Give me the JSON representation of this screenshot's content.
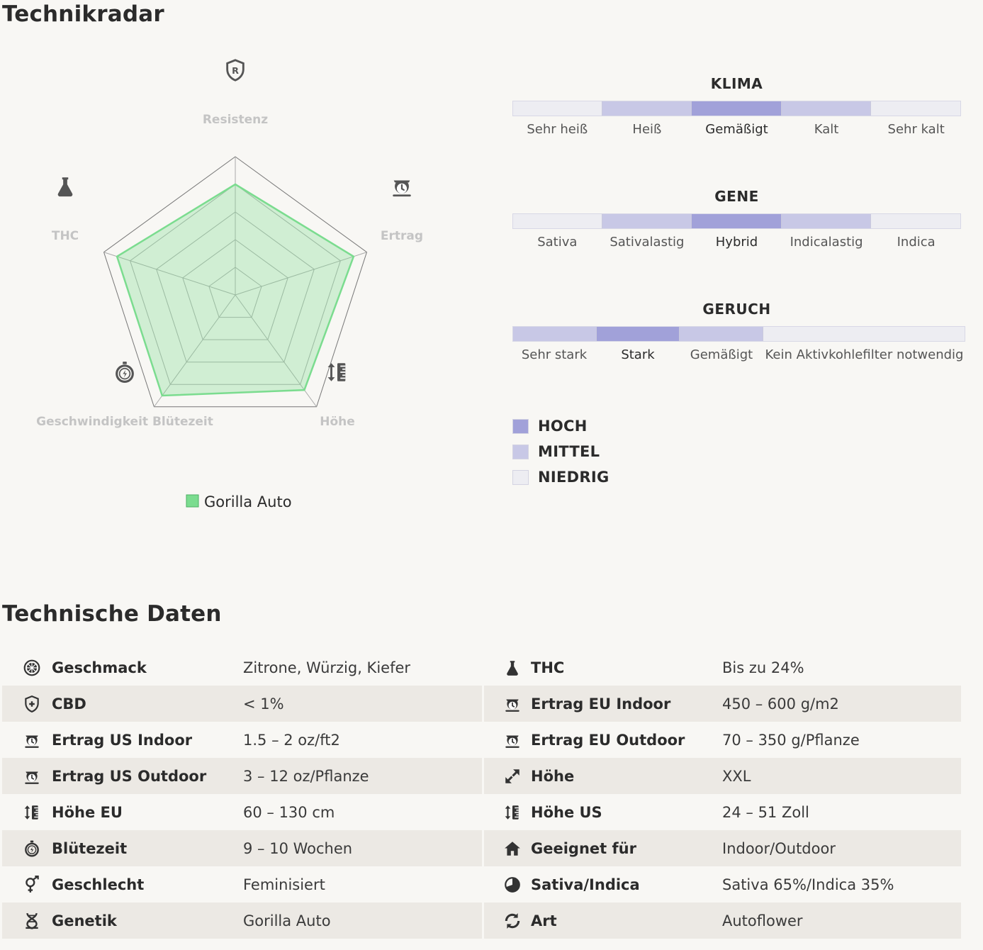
{
  "radar_section": {
    "title": "Technikradar",
    "axes": [
      {
        "label": "Resistenz",
        "icon": "shield-r-icon"
      },
      {
        "label": "Ertrag",
        "icon": "scale-icon"
      },
      {
        "label": "Höhe",
        "icon": "height-icon"
      },
      {
        "label": "Geschwindigkeit Blütezeit",
        "icon": "stopwatch-icon"
      },
      {
        "label": "THC",
        "icon": "flask-icon"
      }
    ],
    "legend": "Gorilla Auto"
  },
  "chart_data": {
    "type": "radar",
    "axes": [
      "Resistenz",
      "Ertrag",
      "Höhe",
      "Geschwindigkeit Blütezeit",
      "THC"
    ],
    "series": [
      {
        "name": "Gorilla Auto",
        "values": [
          0.8,
          0.9,
          0.85,
          0.9,
          0.9
        ],
        "color": "#7bdc8f"
      }
    ],
    "range": [
      0,
      1
    ],
    "grid_levels": 5
  },
  "scales": [
    {
      "title": "KLIMA",
      "segments": [
        {
          "label": "Sehr heiß",
          "level": "low"
        },
        {
          "label": "Heiß",
          "level": "mid"
        },
        {
          "label": "Gemäßigt",
          "level": "high"
        },
        {
          "label": "Kalt",
          "level": "mid"
        },
        {
          "label": "Sehr kalt",
          "level": "low"
        }
      ]
    },
    {
      "title": "GENE",
      "segments": [
        {
          "label": "Sativa",
          "level": "low"
        },
        {
          "label": "Sativalastig",
          "level": "mid"
        },
        {
          "label": "Hybrid",
          "level": "high"
        },
        {
          "label": "Indicalastig",
          "level": "mid"
        },
        {
          "label": "Indica",
          "level": "low"
        }
      ]
    },
    {
      "title": "GERUCH",
      "segments": [
        {
          "label": "Sehr stark",
          "level": "mid"
        },
        {
          "label": "Stark",
          "level": "high"
        },
        {
          "label": "Gemäßigt",
          "level": "mid"
        },
        {
          "label": "Kein Aktivkohlefilter notwendig",
          "level": "low"
        }
      ]
    }
  ],
  "level_legend": [
    {
      "label": "HOCH",
      "color": "#a1a1d9"
    },
    {
      "label": "MITTEL",
      "color": "#c8c8e6"
    },
    {
      "label": "NIEDRIG",
      "color": "#ededf2"
    }
  ],
  "tech": {
    "title": "Technische Daten",
    "rows": [
      [
        {
          "icon": "citrus-icon",
          "label": "Geschmack",
          "value": "Zitrone, Würzig, Kiefer"
        },
        {
          "icon": "flask-icon",
          "label": "THC",
          "value": "Bis zu 24%"
        }
      ],
      [
        {
          "icon": "shield-plus-icon",
          "label": "CBD",
          "value": "< 1%"
        },
        {
          "icon": "scale-icon",
          "label": "Ertrag EU Indoor",
          "value": "450 – 600 g/m2"
        }
      ],
      [
        {
          "icon": "scale-icon",
          "label": "Ertrag US Indoor",
          "value": "1.5 – 2 oz/ft2"
        },
        {
          "icon": "scale-icon",
          "label": "Ertrag EU Outdoor",
          "value": "70 – 350 g/Pflanze"
        }
      ],
      [
        {
          "icon": "scale-icon",
          "label": "Ertrag US Outdoor",
          "value": "3 – 12 oz/Pflanze"
        },
        {
          "icon": "expand-arrow-icon",
          "label": "Höhe",
          "value": "XXL"
        }
      ],
      [
        {
          "icon": "height-icon",
          "label": "Höhe EU",
          "value": "60 – 130 cm"
        },
        {
          "icon": "height-icon",
          "label": "Höhe US",
          "value": "24 – 51 Zoll"
        }
      ],
      [
        {
          "icon": "stopwatch-icon",
          "label": "Blütezeit",
          "value": "9 – 10 Wochen"
        },
        {
          "icon": "house-icon",
          "label": "Geeignet für",
          "value": "Indoor/Outdoor"
        }
      ],
      [
        {
          "icon": "gender-icon",
          "label": "Geschlecht",
          "value": "Feminisiert"
        },
        {
          "icon": "pie-icon",
          "label": "Sativa/Indica",
          "value": "Sativa 65%/Indica 35%"
        }
      ],
      [
        {
          "icon": "dna-icon",
          "label": "Genetik",
          "value": "Gorilla Auto"
        },
        {
          "icon": "refresh-icon",
          "label": "Art",
          "value": "Autoflower"
        }
      ]
    ]
  }
}
